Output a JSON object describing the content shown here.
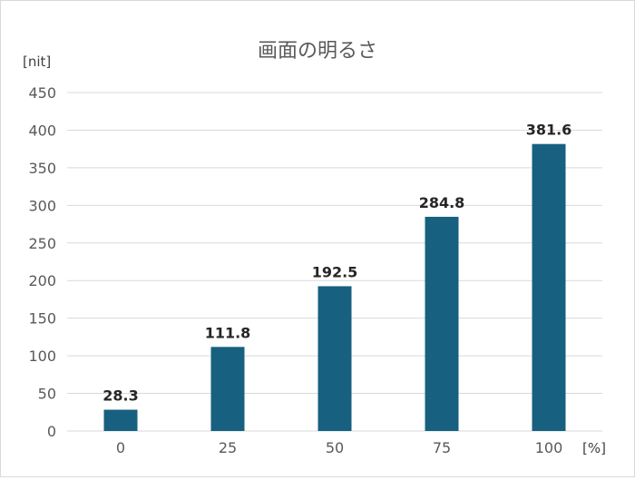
{
  "chart_data": {
    "type": "bar",
    "title": "画面の明るさ",
    "ylabel": "[nit]",
    "xlabel": "[%]",
    "categories": [
      "0",
      "25",
      "50",
      "75",
      "100"
    ],
    "values": [
      28.3,
      111.8,
      192.5,
      284.8,
      381.6
    ],
    "data_labels": [
      "28.3",
      "111.8",
      "192.5",
      "284.8",
      "381.6"
    ],
    "ylim": [
      0,
      450
    ],
    "yticks": [
      "0",
      "50",
      "100",
      "150",
      "200",
      "250",
      "300",
      "350",
      "400",
      "450"
    ],
    "grid": true,
    "legend": "none",
    "bar_color": "#17607f",
    "grid_color": "#d9d9d9"
  }
}
